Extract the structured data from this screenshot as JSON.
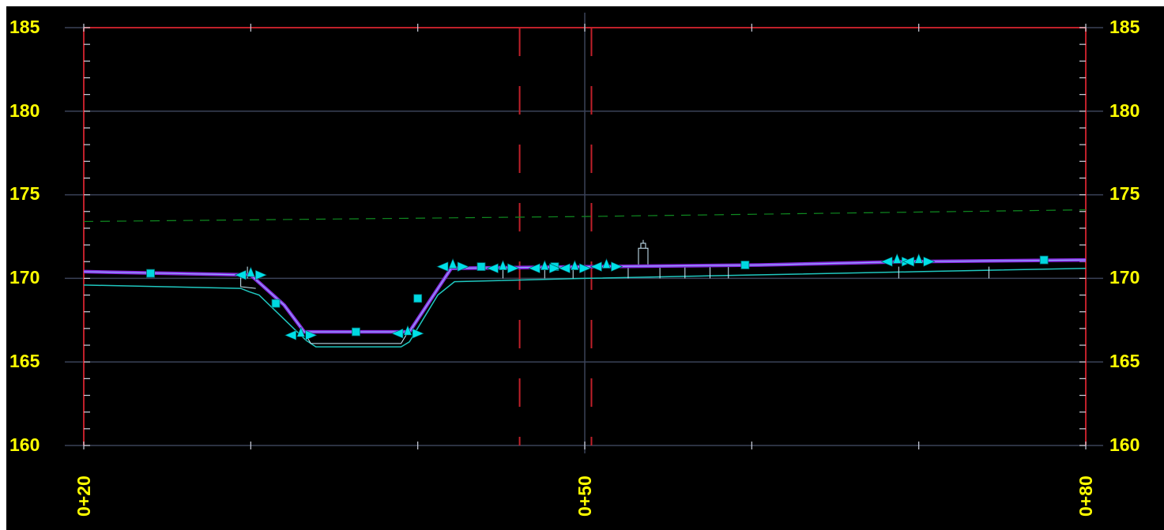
{
  "profile": {
    "elevations": {
      "labels_left": [
        "185",
        "180",
        "175",
        "170",
        "165",
        "160"
      ],
      "labels_right": [
        "185",
        "180",
        "175",
        "170",
        "165",
        "160"
      ],
      "values": [
        185,
        180,
        175,
        170,
        165,
        160
      ]
    },
    "stations": {
      "labels": [
        "0+20",
        "0+50",
        "0+80"
      ],
      "values": [
        20,
        50,
        80
      ]
    },
    "colors": {
      "background": "#000000",
      "label": "#ffff00",
      "grid": "#3a4258",
      "frame": "#c0202a",
      "ground_line": "#1fc7bf",
      "design_line": "#8a2be2",
      "water_table": "#0f8a20",
      "grips": "#00d8e0"
    },
    "ground_line": [
      [
        20,
        169.6
      ],
      [
        29.4,
        169.4
      ],
      [
        29.9,
        169.2
      ],
      [
        30.5,
        169.0
      ],
      [
        33.3,
        166.3
      ],
      [
        33.9,
        165.9
      ],
      [
        39.0,
        165.9
      ],
      [
        39.5,
        166.2
      ],
      [
        41.2,
        169.0
      ],
      [
        42.2,
        169.8
      ],
      [
        50,
        170.0
      ],
      [
        60,
        170.2
      ],
      [
        70,
        170.4
      ],
      [
        80,
        170.6
      ]
    ],
    "design_line": [
      [
        20,
        170.4
      ],
      [
        30.0,
        170.2
      ],
      [
        32.0,
        168.4
      ],
      [
        33.2,
        166.8
      ],
      [
        36.5,
        166.8
      ],
      [
        39.5,
        166.8
      ],
      [
        42.0,
        170.6
      ],
      [
        50.5,
        170.7
      ],
      [
        60.5,
        170.8
      ],
      [
        69.5,
        171.0
      ],
      [
        80,
        171.1
      ]
    ],
    "water_table": [
      [
        20,
        173.4
      ],
      [
        50,
        173.7
      ],
      [
        80,
        174.1
      ]
    ],
    "red_dash_stations": [
      46.1,
      50.4
    ],
    "square_grips": [
      [
        24.0,
        170.3
      ],
      [
        31.5,
        168.5
      ],
      [
        36.3,
        166.8
      ],
      [
        40.0,
        168.8
      ],
      [
        43.8,
        170.7
      ],
      [
        48.2,
        170.7
      ],
      [
        59.6,
        170.8
      ],
      [
        77.5,
        171.1
      ]
    ],
    "arrow_grips": [
      [
        30.0,
        170.2
      ],
      [
        33.0,
        166.6
      ],
      [
        39.4,
        166.7
      ],
      [
        42.1,
        170.7
      ],
      [
        45.1,
        170.6
      ],
      [
        47.6,
        170.6
      ],
      [
        49.4,
        170.6
      ],
      [
        51.3,
        170.7
      ],
      [
        68.7,
        171.0
      ],
      [
        70.0,
        171.0
      ]
    ],
    "grip_icon_names": [
      "square-grip-icon",
      "arrow-grip-icon"
    ]
  }
}
